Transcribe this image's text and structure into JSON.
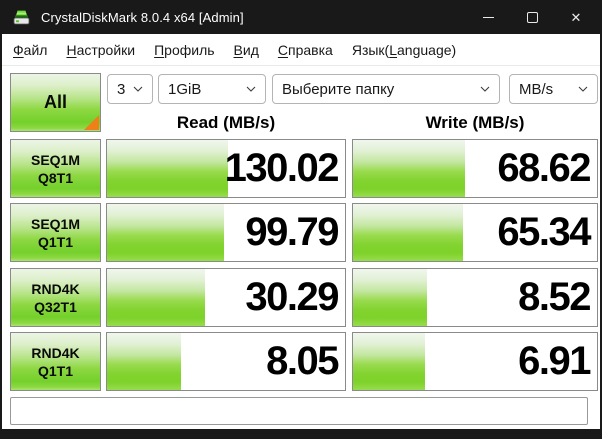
{
  "window": {
    "title": "CrystalDiskMark 8.0.4 x64 [Admin]",
    "close_glyph": "✕"
  },
  "menu": {
    "items": [
      {
        "pre": "",
        "accel": "Ф",
        "post": "айл"
      },
      {
        "pre": "",
        "accel": "Н",
        "post": "астройки"
      },
      {
        "pre": "",
        "accel": "П",
        "post": "рофиль"
      },
      {
        "pre": "",
        "accel": "В",
        "post": "ид"
      },
      {
        "pre": "",
        "accel": "С",
        "post": "правка"
      },
      {
        "pre": "Язык(",
        "accel": "L",
        "post": "anguage)"
      }
    ]
  },
  "toolbar": {
    "all_button": "All",
    "test_count": {
      "value": "3"
    },
    "test_size": {
      "value": "1GiB"
    },
    "target_folder": {
      "value": "Выберите папку"
    },
    "unit": {
      "value": "MB/s"
    }
  },
  "results": {
    "read_header": "Read (MB/s)",
    "write_header": "Write (MB/s)",
    "rows": [
      {
        "test_line1": "SEQ1M",
        "test_line2": "Q8T1",
        "read": {
          "value": "130.02",
          "bar_percent": 51
        },
        "write": {
          "value": "68.62",
          "bar_percent": 46
        }
      },
      {
        "test_line1": "SEQ1M",
        "test_line2": "Q1T1",
        "read": {
          "value": "99.79",
          "bar_percent": 49
        },
        "write": {
          "value": "65.34",
          "bar_percent": 45
        }
      },
      {
        "test_line1": "RND4K",
        "test_line2": "Q32T1",
        "read": {
          "value": "30.29",
          "bar_percent": 41
        },
        "write": {
          "value": "8.52",
          "bar_percent": 30.5
        }
      },
      {
        "test_line1": "RND4K",
        "test_line2": "Q1T1",
        "read": {
          "value": "8.05",
          "bar_percent": 31
        },
        "write": {
          "value": "6.91",
          "bar_percent": 29.5
        }
      }
    ]
  },
  "status_box": {
    "value": "",
    "placeholder": ""
  },
  "colors": {
    "titlebar_bg": "#191919",
    "button_green": "#74d02b",
    "bar_green": "#7ed22a",
    "corner_orange": "#ef7f19",
    "cell_border": "#8a8a8a"
  }
}
